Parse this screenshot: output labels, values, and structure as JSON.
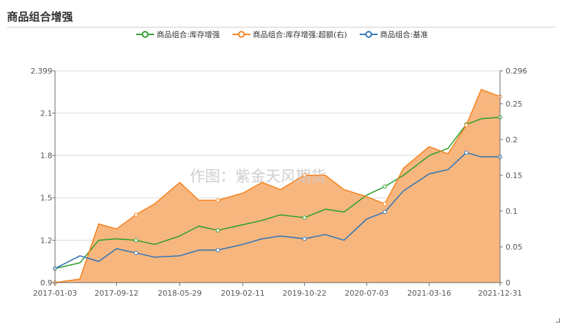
{
  "title": "商品组合增强",
  "watermark": "作图：紫金天风期货",
  "chart_data": {
    "type": "line",
    "title": "商品组合增强",
    "series": [
      {
        "name": "商品组合:库存增强",
        "axis": "left",
        "color": "#2ca02c",
        "x": [
          "2017-01-03",
          "2017-04-15",
          "2017-07-01",
          "2017-09-12",
          "2017-12-01",
          "2018-02-15",
          "2018-05-29",
          "2018-08-15",
          "2018-11-01",
          "2019-02-11",
          "2019-05-01",
          "2019-07-15",
          "2019-10-22",
          "2020-01-15",
          "2020-04-01",
          "2020-07-03",
          "2020-09-15",
          "2020-12-01",
          "2021-03-16",
          "2021-06-01",
          "2021-08-15",
          "2021-10-15",
          "2021-12-31"
        ],
        "values": [
          1.0,
          1.04,
          1.2,
          1.21,
          1.2,
          1.17,
          1.23,
          1.3,
          1.27,
          1.31,
          1.34,
          1.38,
          1.36,
          1.42,
          1.4,
          1.52,
          1.58,
          1.66,
          1.8,
          1.85,
          2.02,
          2.06,
          2.07
        ]
      },
      {
        "name": "商品组合:库存增强:超额(右)",
        "axis": "right",
        "color": "#f5831f",
        "x": [
          "2017-01-03",
          "2017-04-15",
          "2017-07-01",
          "2017-09-12",
          "2017-12-01",
          "2018-02-15",
          "2018-05-29",
          "2018-08-15",
          "2018-11-01",
          "2019-02-11",
          "2019-05-01",
          "2019-07-15",
          "2019-10-22",
          "2020-01-15",
          "2020-04-01",
          "2020-07-03",
          "2020-09-15",
          "2020-12-01",
          "2021-03-16",
          "2021-06-01",
          "2021-08-15",
          "2021-10-15",
          "2021-12-31"
        ],
        "values": [
          0,
          0.005,
          0.082,
          0.075,
          0.095,
          0.11,
          0.14,
          0.115,
          0.115,
          0.125,
          0.14,
          0.13,
          0.15,
          0.15,
          0.13,
          0.12,
          0.11,
          0.16,
          0.19,
          0.18,
          0.22,
          0.27,
          0.26
        ]
      },
      {
        "name": "商品组合:基准",
        "axis": "left",
        "color": "#2f75b5",
        "x": [
          "2017-01-03",
          "2017-04-15",
          "2017-07-01",
          "2017-09-12",
          "2017-12-01",
          "2018-02-15",
          "2018-05-29",
          "2018-08-15",
          "2018-11-01",
          "2019-02-11",
          "2019-05-01",
          "2019-07-15",
          "2019-10-22",
          "2020-01-15",
          "2020-04-01",
          "2020-07-03",
          "2020-09-15",
          "2020-12-01",
          "2021-03-16",
          "2021-06-01",
          "2021-08-15",
          "2021-10-15",
          "2021-12-31"
        ],
        "values": [
          1.0,
          1.09,
          1.05,
          1.14,
          1.11,
          1.08,
          1.09,
          1.13,
          1.13,
          1.17,
          1.21,
          1.23,
          1.21,
          1.24,
          1.2,
          1.35,
          1.4,
          1.55,
          1.67,
          1.7,
          1.82,
          1.79,
          1.79
        ]
      }
    ],
    "x_ticks": [
      "2017-01-03",
      "2017-09-12",
      "2018-05-29",
      "2019-02-11",
      "2019-10-22",
      "2020-07-03",
      "2021-03-16",
      "2021-12-31"
    ],
    "y_left": {
      "ticks": [
        "2.399",
        "2.1",
        "1.8",
        "1.5",
        "1.2",
        "0.9"
      ],
      "min": 0.9,
      "max": 2.399
    },
    "y_right": {
      "ticks": [
        "0.296",
        "0.25",
        "0.2",
        "0.15",
        "0.1",
        "0.05",
        "0"
      ],
      "min": 0,
      "max": 0.296
    },
    "grid": true,
    "legend_position": "top-center"
  }
}
